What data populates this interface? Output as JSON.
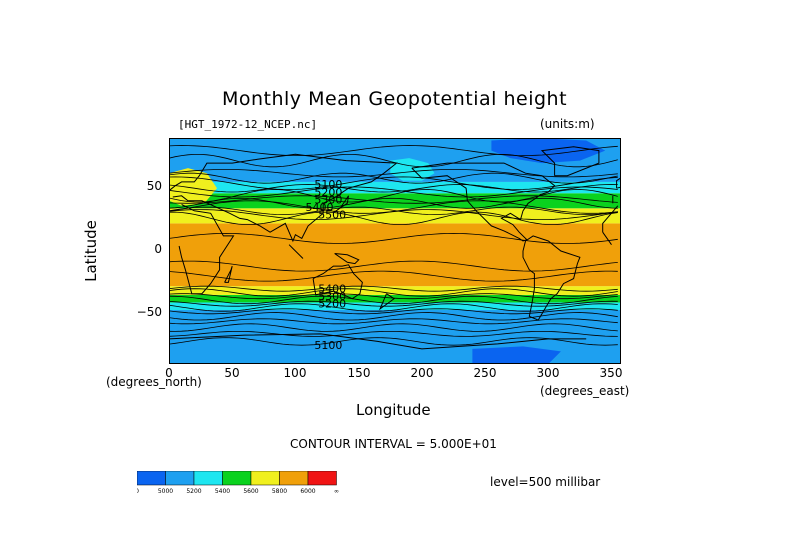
{
  "title": "Monthly Mean Geopotential height",
  "subtitle_left": "[HGT_1972-12_NCEP.nc]",
  "subtitle_right": "(units:m)",
  "axes": {
    "y_label": "Latitude",
    "x_label": "Longitude",
    "y_unit": "(degrees_north)",
    "x_unit": "(degrees_east)",
    "y_ticks": [
      "50",
      "0",
      "−50"
    ],
    "x_ticks": [
      "0",
      "50",
      "100",
      "150",
      "200",
      "250",
      "300",
      "350"
    ]
  },
  "contour_interval": "CONTOUR INTERVAL = 5.000E+01",
  "level": "level=500 millibar",
  "contour_labels": [
    "5100",
    "5200",
    "5300",
    "5400",
    "5500",
    "5400",
    "5300",
    "5200",
    "5100"
  ],
  "colorbar": {
    "colors": [
      "#0a64f0",
      "#1ea0f0",
      "#1ee6f0",
      "#0ad21e",
      "#f0f01e",
      "#f0a00a",
      "#f01414"
    ],
    "labels": [
      "0",
      "5000",
      "5200",
      "5400",
      "5600",
      "5800",
      "6000",
      "∞"
    ]
  },
  "map": {
    "lon_range": [
      0,
      357.5
    ],
    "lat_range": [
      -90,
      90
    ],
    "bands": [
      {
        "color": "#1ea0f0",
        "lat": [
          -90,
          -47
        ]
      },
      {
        "color": "#1ee6f0",
        "lat": [
          -47,
          -41
        ]
      },
      {
        "color": "#0ad21e",
        "lat": [
          -41,
          -35
        ]
      },
      {
        "color": "#f0f01e",
        "lat": [
          -35,
          -28
        ]
      },
      {
        "color": "#f0a00a",
        "lat": [
          -28,
          22
        ]
      },
      {
        "color": "#f0f01e",
        "lat": [
          22,
          34
        ]
      },
      {
        "color": "#0ad21e",
        "lat": [
          34,
          46
        ]
      },
      {
        "color": "#1ee6f0",
        "lat": [
          46,
          55
        ]
      },
      {
        "color": "#1ea0f0",
        "lat": [
          55,
          90
        ]
      }
    ]
  }
}
